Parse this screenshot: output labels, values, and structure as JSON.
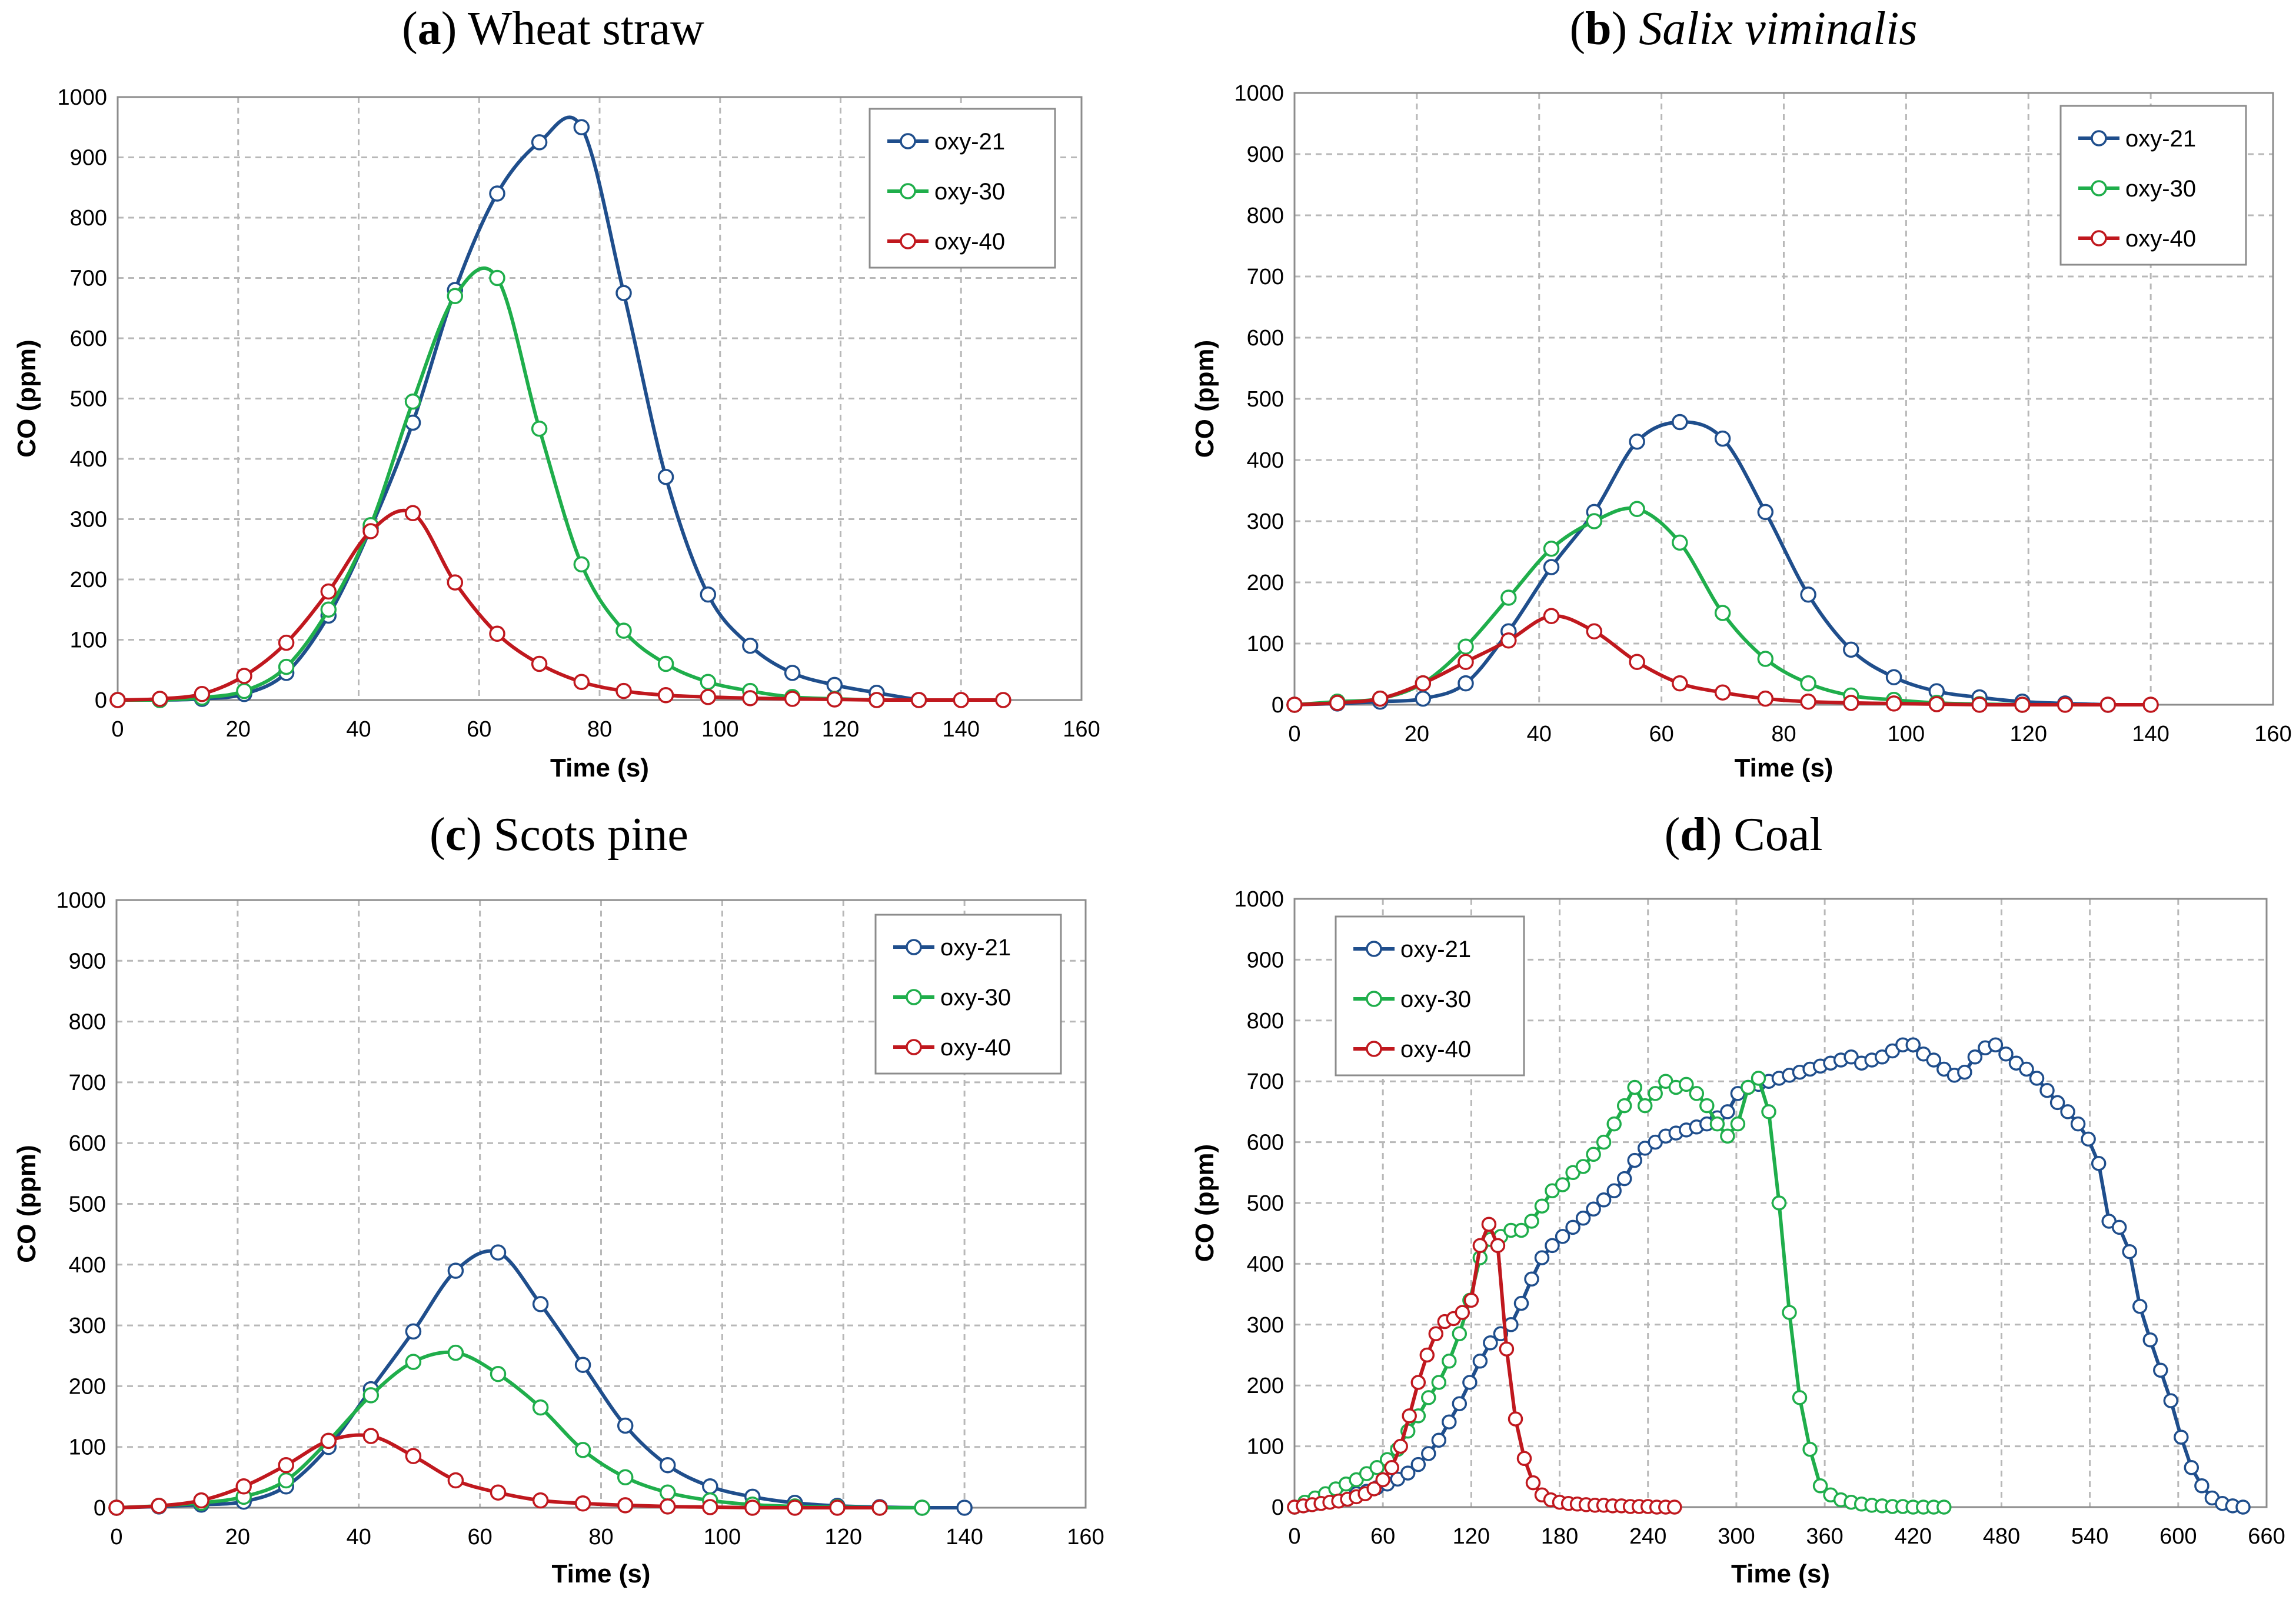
{
  "colors": {
    "oxy21": "#1f4e8c",
    "oxy30": "#1fae4b",
    "oxy40": "#c0181e"
  },
  "chart_data": [
    {
      "type": "line",
      "title": {
        "letter": "a",
        "text": "Wheat straw",
        "italic": false
      },
      "xlabel": "Time (s)",
      "ylabel": "CO (ppm)",
      "xlim": [
        0,
        160
      ],
      "ylim": [
        0,
        1000
      ],
      "xticks": [
        0,
        20,
        40,
        60,
        80,
        100,
        120,
        140,
        160
      ],
      "yticks": [
        0,
        100,
        200,
        300,
        400,
        500,
        600,
        700,
        800,
        900,
        1000
      ],
      "grid": true,
      "legend": "top-right",
      "series": [
        {
          "name": "oxy-21",
          "color": "#1f4e8c",
          "x": [
            0,
            7,
            14,
            21,
            28,
            35,
            42,
            49,
            56,
            63,
            70,
            77,
            84,
            91,
            98,
            105,
            112,
            119,
            126,
            133
          ],
          "y": [
            0,
            0,
            2,
            10,
            45,
            140,
            285,
            460,
            680,
            840,
            925,
            950,
            675,
            370,
            175,
            90,
            45,
            25,
            12,
            0
          ]
        },
        {
          "name": "oxy-30",
          "color": "#1fae4b",
          "x": [
            0,
            7,
            14,
            21,
            28,
            35,
            42,
            49,
            56,
            63,
            70,
            77,
            84,
            91,
            98,
            105,
            112,
            119,
            126
          ],
          "y": [
            0,
            0,
            4,
            15,
            55,
            150,
            290,
            495,
            670,
            700,
            450,
            225,
            115,
            60,
            30,
            15,
            5,
            2,
            0
          ]
        },
        {
          "name": "oxy-40",
          "color": "#c0181e",
          "x": [
            0,
            7,
            14,
            21,
            28,
            35,
            42,
            49,
            56,
            63,
            70,
            77,
            84,
            91,
            98,
            105,
            112,
            119,
            126,
            133,
            140,
            147
          ],
          "y": [
            0,
            2,
            10,
            40,
            95,
            180,
            280,
            310,
            195,
            110,
            60,
            30,
            15,
            8,
            5,
            3,
            2,
            1,
            0,
            0,
            0,
            0
          ]
        }
      ]
    },
    {
      "type": "line",
      "title": {
        "letter": "b",
        "text": "Salix viminalis",
        "italic": true
      },
      "xlabel": "Time (s)",
      "ylabel": "CO (ppm)",
      "xlim": [
        0,
        160
      ],
      "ylim": [
        0,
        1000
      ],
      "xticks": [
        0,
        20,
        40,
        60,
        80,
        100,
        120,
        140,
        160
      ],
      "yticks": [
        0,
        100,
        200,
        300,
        400,
        500,
        600,
        700,
        800,
        900,
        1000
      ],
      "grid": true,
      "legend": "top-right",
      "series": [
        {
          "name": "oxy-21",
          "color": "#1f4e8c",
          "x": [
            0,
            7,
            14,
            21,
            28,
            35,
            42,
            49,
            56,
            63,
            70,
            77,
            84,
            91,
            98,
            105,
            112,
            119,
            126,
            133
          ],
          "y": [
            0,
            2,
            5,
            10,
            35,
            120,
            225,
            315,
            430,
            462,
            435,
            315,
            180,
            90,
            45,
            22,
            12,
            5,
            2,
            0
          ]
        },
        {
          "name": "oxy-30",
          "color": "#1fae4b",
          "x": [
            0,
            7,
            14,
            21,
            28,
            35,
            42,
            49,
            56,
            63,
            70,
            77,
            84,
            91,
            98,
            105,
            112,
            119
          ],
          "y": [
            0,
            5,
            10,
            35,
            95,
            175,
            255,
            300,
            320,
            265,
            150,
            75,
            35,
            15,
            8,
            3,
            1,
            0
          ]
        },
        {
          "name": "oxy-40",
          "color": "#c0181e",
          "x": [
            0,
            7,
            14,
            21,
            28,
            35,
            42,
            49,
            56,
            63,
            70,
            77,
            84,
            91,
            98,
            105,
            112,
            119,
            126,
            133,
            140
          ],
          "y": [
            0,
            3,
            10,
            35,
            70,
            105,
            145,
            120,
            70,
            35,
            20,
            10,
            5,
            3,
            2,
            1,
            0,
            0,
            0,
            0,
            0
          ]
        }
      ]
    },
    {
      "type": "line",
      "title": {
        "letter": "c",
        "text": "Scots pine",
        "italic": false
      },
      "xlabel": "Time (s)",
      "ylabel": "CO (ppm)",
      "xlim": [
        0,
        160
      ],
      "ylim": [
        0,
        1000
      ],
      "xticks": [
        0,
        20,
        40,
        60,
        80,
        100,
        120,
        140,
        160
      ],
      "yticks": [
        0,
        100,
        200,
        300,
        400,
        500,
        600,
        700,
        800,
        900,
        1000
      ],
      "grid": true,
      "legend": "top-right",
      "series": [
        {
          "name": "oxy-21",
          "color": "#1f4e8c",
          "x": [
            0,
            7,
            14,
            21,
            28,
            35,
            42,
            49,
            56,
            63,
            70,
            77,
            84,
            91,
            98,
            105,
            112,
            119,
            126,
            133,
            140
          ],
          "y": [
            0,
            2,
            5,
            10,
            35,
            100,
            195,
            290,
            390,
            420,
            335,
            235,
            135,
            70,
            35,
            18,
            8,
            3,
            1,
            0,
            0
          ]
        },
        {
          "name": "oxy-30",
          "color": "#1fae4b",
          "x": [
            0,
            7,
            14,
            21,
            28,
            35,
            42,
            49,
            56,
            63,
            70,
            77,
            84,
            91,
            98,
            105,
            112,
            119,
            126,
            133
          ],
          "y": [
            0,
            3,
            8,
            18,
            45,
            110,
            185,
            240,
            255,
            220,
            165,
            95,
            50,
            25,
            12,
            5,
            2,
            1,
            0,
            0
          ]
        },
        {
          "name": "oxy-40",
          "color": "#c0181e",
          "x": [
            0,
            7,
            14,
            21,
            28,
            35,
            42,
            49,
            56,
            63,
            70,
            77,
            84,
            91,
            98,
            105,
            112,
            119,
            126
          ],
          "y": [
            0,
            3,
            12,
            35,
            70,
            110,
            118,
            85,
            45,
            25,
            12,
            7,
            4,
            2,
            1,
            0,
            0,
            0,
            0
          ]
        }
      ]
    },
    {
      "type": "line",
      "title": {
        "letter": "d",
        "text": "Coal",
        "italic": false
      },
      "xlabel": "Time (s)",
      "ylabel": "CO (ppm)",
      "xlim": [
        0,
        660
      ],
      "ylim": [
        0,
        1000
      ],
      "xticks": [
        0,
        60,
        120,
        180,
        240,
        300,
        360,
        420,
        480,
        540,
        600,
        660
      ],
      "yticks": [
        0,
        100,
        200,
        300,
        400,
        500,
        600,
        700,
        800,
        900,
        1000
      ],
      "grid": true,
      "legend": "top-left",
      "series": [
        {
          "name": "oxy-21",
          "color": "#1f4e8c",
          "x": [
            0,
            7,
            14,
            21,
            28,
            35,
            42,
            49,
            56,
            63,
            70,
            77,
            84,
            91,
            98,
            105,
            112,
            119,
            126,
            133,
            140,
            147,
            154,
            161,
            168,
            175,
            182,
            189,
            196,
            203,
            210,
            217,
            224,
            231,
            238,
            245,
            252,
            259,
            266,
            273,
            280,
            287,
            294,
            301,
            308,
            315,
            322,
            329,
            336,
            343,
            350,
            357,
            364,
            371,
            378,
            385,
            392,
            399,
            406,
            413,
            420,
            427,
            434,
            441,
            448,
            455,
            462,
            469,
            476,
            483,
            490,
            497,
            504,
            511,
            518,
            525,
            532,
            539,
            546,
            553,
            560,
            567,
            574,
            581,
            588,
            595,
            602,
            609,
            616,
            623,
            630,
            637,
            644
          ],
          "y": [
            0,
            3,
            6,
            10,
            14,
            18,
            22,
            26,
            32,
            38,
            46,
            56,
            70,
            88,
            110,
            140,
            170,
            205,
            240,
            270,
            285,
            300,
            335,
            375,
            410,
            430,
            445,
            460,
            475,
            490,
            505,
            520,
            540,
            570,
            590,
            600,
            610,
            615,
            620,
            625,
            630,
            640,
            650,
            680,
            690,
            695,
            700,
            705,
            710,
            715,
            720,
            725,
            730,
            735,
            740,
            730,
            735,
            740,
            750,
            760,
            760,
            745,
            735,
            720,
            710,
            715,
            740,
            755,
            760,
            745,
            730,
            720,
            705,
            685,
            665,
            650,
            630,
            605,
            565,
            470,
            460,
            420,
            330,
            275,
            225,
            175,
            115,
            65,
            35,
            15,
            6,
            2,
            0
          ]
        },
        {
          "name": "oxy-30",
          "color": "#1fae4b",
          "x": [
            0,
            7,
            14,
            21,
            28,
            35,
            42,
            49,
            56,
            63,
            70,
            77,
            84,
            91,
            98,
            105,
            112,
            119,
            126,
            133,
            140,
            147,
            154,
            161,
            168,
            175,
            182,
            189,
            196,
            203,
            210,
            217,
            224,
            231,
            238,
            245,
            252,
            259,
            266,
            273,
            280,
            287,
            294,
            301,
            308,
            315,
            322,
            329,
            336,
            343,
            350,
            357,
            364,
            371,
            378,
            385,
            392,
            399,
            406,
            413,
            420,
            427,
            434,
            441
          ],
          "y": [
            0,
            8,
            15,
            22,
            30,
            38,
            45,
            55,
            65,
            78,
            95,
            125,
            150,
            180,
            205,
            240,
            285,
            340,
            410,
            440,
            445,
            455,
            455,
            470,
            495,
            520,
            530,
            550,
            560,
            580,
            600,
            630,
            660,
            690,
            660,
            680,
            700,
            690,
            695,
            680,
            660,
            630,
            610,
            630,
            690,
            705,
            650,
            500,
            320,
            180,
            95,
            35,
            20,
            12,
            8,
            5,
            3,
            2,
            1,
            1,
            0,
            0,
            0,
            0
          ]
        },
        {
          "name": "oxy-40",
          "color": "#c0181e",
          "x": [
            0,
            6,
            12,
            18,
            24,
            30,
            36,
            42,
            48,
            54,
            60,
            66,
            72,
            78,
            84,
            90,
            96,
            102,
            108,
            114,
            120,
            126,
            132,
            138,
            144,
            150,
            156,
            162,
            168,
            174,
            180,
            186,
            192,
            198,
            204,
            210,
            216,
            222,
            228,
            234,
            240,
            246,
            252,
            258
          ],
          "y": [
            0,
            2,
            4,
            6,
            8,
            10,
            13,
            17,
            22,
            30,
            45,
            65,
            100,
            150,
            205,
            250,
            285,
            305,
            310,
            320,
            340,
            430,
            465,
            430,
            260,
            145,
            80,
            40,
            20,
            12,
            8,
            6,
            5,
            4,
            3,
            3,
            2,
            2,
            1,
            1,
            1,
            0,
            0,
            0
          ]
        }
      ]
    }
  ]
}
